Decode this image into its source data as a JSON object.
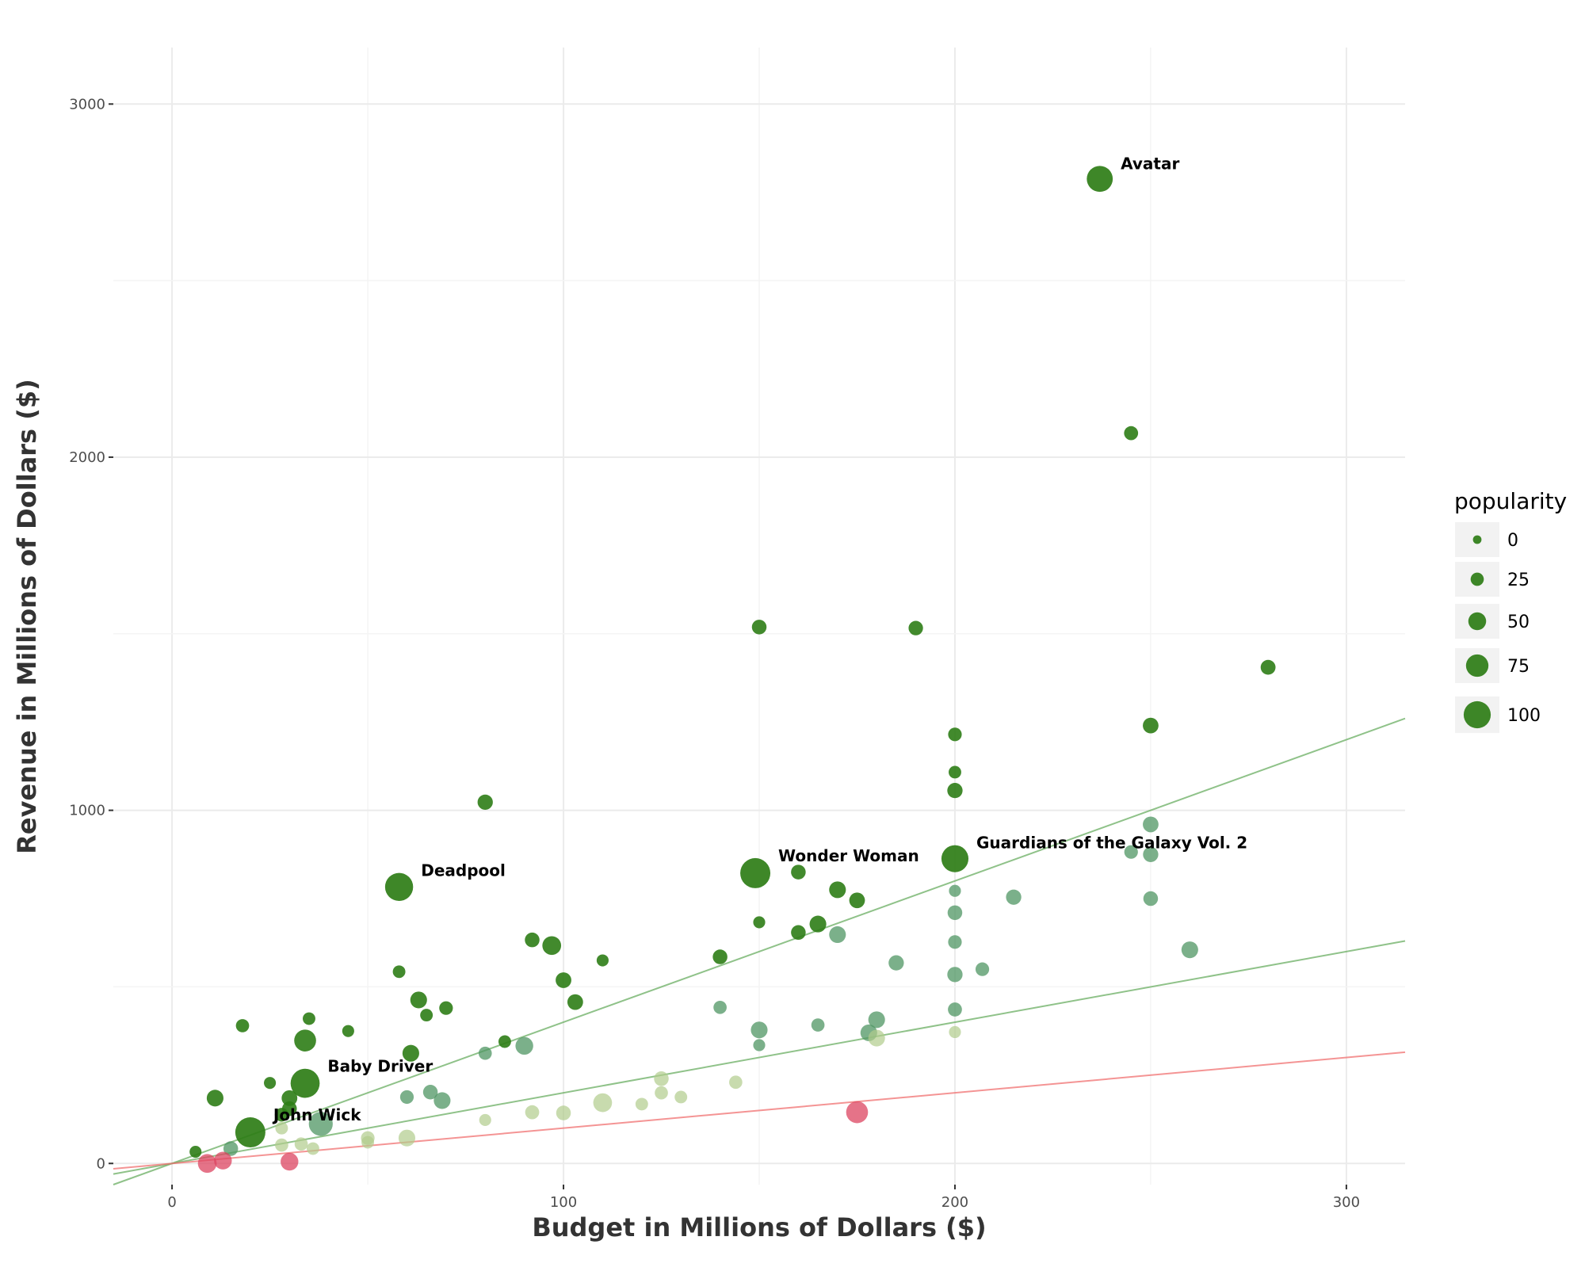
{
  "chart_data": {
    "type": "scatter",
    "title": "",
    "xlabel": "Budget in Millions of Dollars ($)",
    "ylabel": "Revenue in Millions of Dollars ($)",
    "xlim": [
      -15,
      315
    ],
    "ylim": [
      -60,
      3160
    ],
    "x_ticks": [
      0,
      100,
      200,
      300
    ],
    "y_ticks": [
      0,
      1000,
      2000,
      3000
    ],
    "grid": true,
    "legend": {
      "title": "popularity",
      "placement": "right",
      "entries": [
        {
          "label": "0",
          "value": 0
        },
        {
          "label": "25",
          "value": 25
        },
        {
          "label": "50",
          "value": 50
        },
        {
          "label": "75",
          "value": 75
        },
        {
          "label": "100",
          "value": 100
        }
      ]
    },
    "colors": {
      "high_ratio": "#2e7d16",
      "mid_ratio": "#4f9563",
      "low_ratio": "#b1cc8c",
      "loss": "#dc4460",
      "line_green": "#6aad62",
      "line_red": "#f07070"
    },
    "reference_lines": [
      {
        "slope": 4,
        "color": "line_green"
      },
      {
        "slope": 2,
        "color": "line_green"
      },
      {
        "slope": 1,
        "color": "line_red"
      }
    ],
    "annotations": [
      {
        "label": "Avatar",
        "x": 237,
        "y": 2788,
        "popularity": 80
      },
      {
        "label": "Deadpool",
        "x": 58,
        "y": 783,
        "popularity": 90
      },
      {
        "label": "Wonder Woman",
        "x": 149,
        "y": 822,
        "popularity": 100
      },
      {
        "label": "Guardians of the Galaxy Vol. 2",
        "x": 200,
        "y": 863,
        "popularity": 85
      },
      {
        "label": "Baby Driver",
        "x": 34,
        "y": 227,
        "popularity": 95
      },
      {
        "label": "John Wick",
        "x": 20,
        "y": 88,
        "popularity": 100
      }
    ],
    "points": [
      {
        "x": 245,
        "y": 2068,
        "popularity": 22,
        "group": "high_ratio"
      },
      {
        "x": 150,
        "y": 1519,
        "popularity": 25,
        "group": "high_ratio"
      },
      {
        "x": 190,
        "y": 1516,
        "popularity": 24,
        "group": "high_ratio"
      },
      {
        "x": 280,
        "y": 1405,
        "popularity": 26,
        "group": "high_ratio"
      },
      {
        "x": 250,
        "y": 1240,
        "popularity": 30,
        "group": "high_ratio"
      },
      {
        "x": 200,
        "y": 1215,
        "popularity": 20,
        "group": "high_ratio"
      },
      {
        "x": 200,
        "y": 1108,
        "popularity": 15,
        "group": "high_ratio"
      },
      {
        "x": 200,
        "y": 1056,
        "popularity": 28,
        "group": "high_ratio"
      },
      {
        "x": 80,
        "y": 1023,
        "popularity": 28,
        "group": "high_ratio"
      },
      {
        "x": 160,
        "y": 825,
        "popularity": 25,
        "group": "high_ratio"
      },
      {
        "x": 170,
        "y": 775,
        "popularity": 35,
        "group": "high_ratio"
      },
      {
        "x": 175,
        "y": 745,
        "popularity": 30,
        "group": "high_ratio"
      },
      {
        "x": 150,
        "y": 683,
        "popularity": 12,
        "group": "high_ratio"
      },
      {
        "x": 165,
        "y": 678,
        "popularity": 35,
        "group": "high_ratio"
      },
      {
        "x": 160,
        "y": 654,
        "popularity": 25,
        "group": "high_ratio"
      },
      {
        "x": 92,
        "y": 633,
        "popularity": 25,
        "group": "high_ratio"
      },
      {
        "x": 97,
        "y": 617,
        "popularity": 45,
        "group": "high_ratio"
      },
      {
        "x": 140,
        "y": 585,
        "popularity": 25,
        "group": "high_ratio"
      },
      {
        "x": 110,
        "y": 575,
        "popularity": 12,
        "group": "high_ratio"
      },
      {
        "x": 58,
        "y": 543,
        "popularity": 15,
        "group": "high_ratio"
      },
      {
        "x": 100,
        "y": 519,
        "popularity": 30,
        "group": "high_ratio"
      },
      {
        "x": 63,
        "y": 463,
        "popularity": 35,
        "group": "high_ratio"
      },
      {
        "x": 103,
        "y": 457,
        "popularity": 30,
        "group": "high_ratio"
      },
      {
        "x": 70,
        "y": 440,
        "popularity": 20,
        "group": "high_ratio"
      },
      {
        "x": 65,
        "y": 420,
        "popularity": 15,
        "group": "high_ratio"
      },
      {
        "x": 35,
        "y": 410,
        "popularity": 15,
        "group": "high_ratio"
      },
      {
        "x": 18,
        "y": 390,
        "popularity": 18,
        "group": "high_ratio"
      },
      {
        "x": 45,
        "y": 375,
        "popularity": 12,
        "group": "high_ratio"
      },
      {
        "x": 34,
        "y": 348,
        "popularity": 60,
        "group": "high_ratio"
      },
      {
        "x": 85,
        "y": 345,
        "popularity": 15,
        "group": "high_ratio"
      },
      {
        "x": 61,
        "y": 312,
        "popularity": 35,
        "group": "high_ratio"
      },
      {
        "x": 25,
        "y": 228,
        "popularity": 12,
        "group": "high_ratio"
      },
      {
        "x": 11,
        "y": 185,
        "popularity": 35,
        "group": "high_ratio"
      },
      {
        "x": 30,
        "y": 185,
        "popularity": 30,
        "group": "high_ratio"
      },
      {
        "x": 30,
        "y": 155,
        "popularity": 25,
        "group": "high_ratio"
      },
      {
        "x": 28,
        "y": 138,
        "popularity": 20,
        "group": "high_ratio"
      },
      {
        "x": 6,
        "y": 33,
        "popularity": 12,
        "group": "high_ratio"
      },
      {
        "x": 250,
        "y": 960,
        "popularity": 30,
        "group": "mid_ratio"
      },
      {
        "x": 245,
        "y": 882,
        "popularity": 20,
        "group": "mid_ratio"
      },
      {
        "x": 250,
        "y": 875,
        "popularity": 28,
        "group": "mid_ratio"
      },
      {
        "x": 200,
        "y": 772,
        "popularity": 12,
        "group": "mid_ratio"
      },
      {
        "x": 215,
        "y": 754,
        "popularity": 28,
        "group": "mid_ratio"
      },
      {
        "x": 250,
        "y": 750,
        "popularity": 25,
        "group": "mid_ratio"
      },
      {
        "x": 200,
        "y": 710,
        "popularity": 25,
        "group": "mid_ratio"
      },
      {
        "x": 170,
        "y": 648,
        "popularity": 35,
        "group": "mid_ratio"
      },
      {
        "x": 200,
        "y": 627,
        "popularity": 20,
        "group": "mid_ratio"
      },
      {
        "x": 260,
        "y": 605,
        "popularity": 35,
        "group": "mid_ratio"
      },
      {
        "x": 185,
        "y": 568,
        "popularity": 28,
        "group": "mid_ratio"
      },
      {
        "x": 207,
        "y": 550,
        "popularity": 20,
        "group": "mid_ratio"
      },
      {
        "x": 200,
        "y": 535,
        "popularity": 28,
        "group": "mid_ratio"
      },
      {
        "x": 140,
        "y": 442,
        "popularity": 18,
        "group": "mid_ratio"
      },
      {
        "x": 200,
        "y": 436,
        "popularity": 22,
        "group": "mid_ratio"
      },
      {
        "x": 180,
        "y": 407,
        "popularity": 35,
        "group": "mid_ratio"
      },
      {
        "x": 165,
        "y": 392,
        "popularity": 18,
        "group": "mid_ratio"
      },
      {
        "x": 150,
        "y": 378,
        "popularity": 35,
        "group": "mid_ratio"
      },
      {
        "x": 178,
        "y": 370,
        "popularity": 35,
        "group": "mid_ratio"
      },
      {
        "x": 150,
        "y": 335,
        "popularity": 12,
        "group": "mid_ratio"
      },
      {
        "x": 90,
        "y": 333,
        "popularity": 40,
        "group": "mid_ratio"
      },
      {
        "x": 80,
        "y": 312,
        "popularity": 18,
        "group": "mid_ratio"
      },
      {
        "x": 66,
        "y": 202,
        "popularity": 25,
        "group": "mid_ratio"
      },
      {
        "x": 60,
        "y": 188,
        "popularity": 20,
        "group": "mid_ratio"
      },
      {
        "x": 69,
        "y": 178,
        "popularity": 35,
        "group": "mid_ratio"
      },
      {
        "x": 38,
        "y": 112,
        "popularity": 70,
        "group": "mid_ratio"
      },
      {
        "x": 15,
        "y": 42,
        "popularity": 25,
        "group": "mid_ratio"
      },
      {
        "x": 180,
        "y": 355,
        "popularity": 35,
        "group": "low_ratio"
      },
      {
        "x": 200,
        "y": 372,
        "popularity": 12,
        "group": "low_ratio"
      },
      {
        "x": 125,
        "y": 240,
        "popularity": 25,
        "group": "low_ratio"
      },
      {
        "x": 144,
        "y": 230,
        "popularity": 18,
        "group": "low_ratio"
      },
      {
        "x": 125,
        "y": 200,
        "popularity": 18,
        "group": "low_ratio"
      },
      {
        "x": 130,
        "y": 188,
        "popularity": 15,
        "group": "low_ratio"
      },
      {
        "x": 110,
        "y": 172,
        "popularity": 45,
        "group": "low_ratio"
      },
      {
        "x": 120,
        "y": 168,
        "popularity": 15,
        "group": "low_ratio"
      },
      {
        "x": 92,
        "y": 145,
        "popularity": 22,
        "group": "low_ratio"
      },
      {
        "x": 100,
        "y": 143,
        "popularity": 25,
        "group": "low_ratio"
      },
      {
        "x": 80,
        "y": 123,
        "popularity": 12,
        "group": "low_ratio"
      },
      {
        "x": 60,
        "y": 72,
        "popularity": 35,
        "group": "low_ratio"
      },
      {
        "x": 50,
        "y": 72,
        "popularity": 20,
        "group": "low_ratio"
      },
      {
        "x": 50,
        "y": 60,
        "popularity": 15,
        "group": "low_ratio"
      },
      {
        "x": 33,
        "y": 55,
        "popularity": 18,
        "group": "low_ratio"
      },
      {
        "x": 28,
        "y": 52,
        "popularity": 18,
        "group": "low_ratio"
      },
      {
        "x": 36,
        "y": 42,
        "popularity": 15,
        "group": "low_ratio"
      },
      {
        "x": 28,
        "y": 100,
        "popularity": 15,
        "group": "low_ratio"
      },
      {
        "x": 175,
        "y": 145,
        "popularity": 60,
        "group": "loss"
      },
      {
        "x": 9,
        "y": 0,
        "popularity": 45,
        "group": "loss"
      },
      {
        "x": 13,
        "y": 8,
        "popularity": 40,
        "group": "loss"
      },
      {
        "x": 30,
        "y": 5,
        "popularity": 40,
        "group": "loss"
      }
    ]
  }
}
